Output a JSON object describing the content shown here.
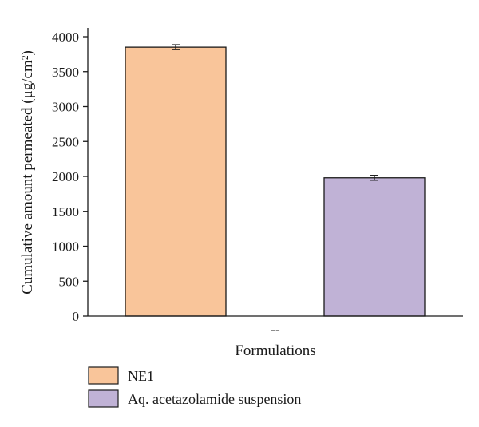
{
  "chart_data": {
    "type": "bar",
    "title": "",
    "xlabel": "Formulations",
    "ylabel": "Cumulative amount permeated (μg/cm²)",
    "x_tick_label": "--",
    "ylim": [
      0,
      4000
    ],
    "yticks": [
      0,
      500,
      1000,
      1500,
      2000,
      2500,
      3000,
      3500,
      4000
    ],
    "grid": false,
    "legend_position": "bottom-left",
    "series": [
      {
        "name": "NE1",
        "value": 3850,
        "error": 35,
        "color": "#f9c59a"
      },
      {
        "name": "Aq. acetazolamide suspension",
        "value": 1980,
        "error": 35,
        "color": "#c0b2d6"
      }
    ]
  }
}
